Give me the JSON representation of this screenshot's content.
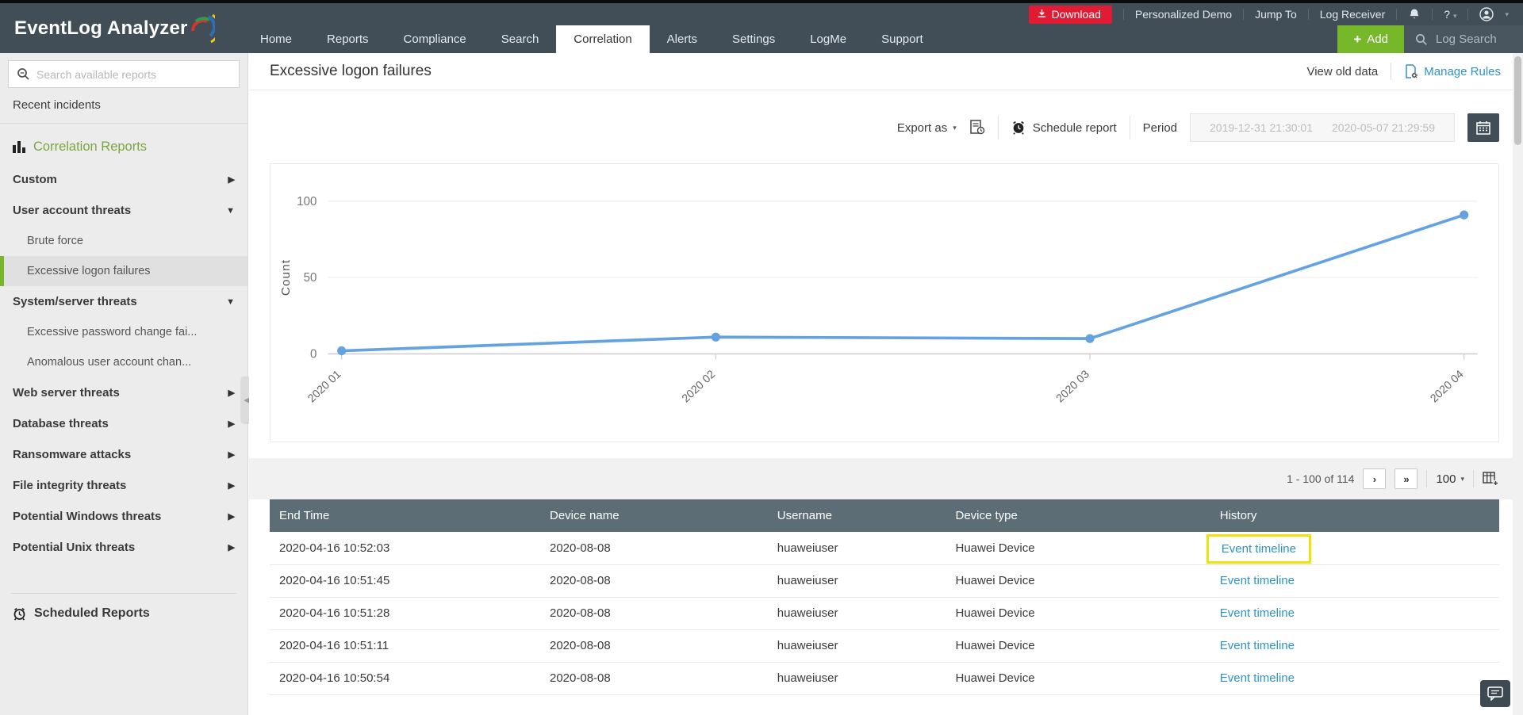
{
  "topbar": {
    "logo": "EventLog Analyzer",
    "download": "Download",
    "personalized_demo": "Personalized Demo",
    "jump_to": "Jump To",
    "log_receiver": "Log Receiver",
    "help": "?",
    "nav": [
      "Home",
      "Reports",
      "Compliance",
      "Search",
      "Correlation",
      "Alerts",
      "Settings",
      "LogMe",
      "Support"
    ],
    "active_tab": "Correlation",
    "add": "Add",
    "log_search": "Log Search"
  },
  "sidebar": {
    "search_placeholder": "Search available reports",
    "recent_incidents": "Recent incidents",
    "section": "Correlation Reports",
    "items": [
      "Custom",
      "User account threats",
      "Brute force",
      "Excessive logon failures",
      "System/server threats",
      "Excessive password change fai...",
      "Anomalous user account chan...",
      "Web server threats",
      "Database threats",
      "Ransomware attacks",
      "File integrity threats",
      "Potential Windows threats",
      "Potential Unix threats"
    ],
    "selected_item": "Excessive logon failures",
    "scheduled_reports": "Scheduled Reports"
  },
  "main": {
    "title": "Excessive logon failures",
    "view_old_data": "View old data",
    "manage_rules": "Manage Rules",
    "toolbar": {
      "export_as": "Export as",
      "schedule_report": "Schedule report",
      "period_label": "Period",
      "period_start": "2019-12-31 21:30:01",
      "period_end": "2020-05-07 21:29:59"
    },
    "pagination": {
      "range": "1 - 100 of 114",
      "next": "›",
      "last": "»",
      "page_size": "100"
    },
    "table": {
      "columns": [
        "End Time",
        "Device name",
        "Username",
        "Device type",
        "History"
      ],
      "rows": [
        [
          "2020-04-16 10:52:03",
          "2020-08-08",
          "huaweiuser",
          "Huawei Device",
          "Event timeline"
        ],
        [
          "2020-04-16 10:51:45",
          "2020-08-08",
          "huaweiuser",
          "Huawei Device",
          "Event timeline"
        ],
        [
          "2020-04-16 10:51:28",
          "2020-08-08",
          "huaweiuser",
          "Huawei Device",
          "Event timeline"
        ],
        [
          "2020-04-16 10:51:11",
          "2020-08-08",
          "huaweiuser",
          "Huawei Device",
          "Event timeline"
        ],
        [
          "2020-04-16 10:50:54",
          "2020-08-08",
          "huaweiuser",
          "Huawei Device",
          "Event timeline"
        ]
      ]
    }
  },
  "chart_data": {
    "type": "line",
    "x": [
      "2020 01",
      "2020 02",
      "2020 03",
      "2020 04"
    ],
    "series": [
      {
        "name": "Count",
        "values": [
          2,
          11,
          10,
          91
        ]
      }
    ],
    "ylabel": "Count",
    "yticks": [
      0,
      50,
      100
    ],
    "ylim": [
      0,
      100
    ],
    "grid": "horizontal",
    "line_color": "#64a3df"
  },
  "colors": {
    "header_bg": "#414e58",
    "accent_green": "#76b82a",
    "link_blue": "#2e93c9",
    "download_red": "#e11b33",
    "table_header_bg": "#5d6d75",
    "chart_line": "#64a3df",
    "highlight_yellow": "#f2e20c"
  }
}
